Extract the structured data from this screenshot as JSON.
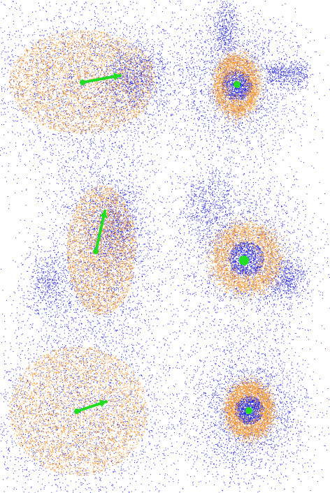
{
  "colors": {
    "background": "#ffffff",
    "outer_particles": "#2a2ad8",
    "inner_particles": "#f5a040",
    "marker": "#22dd22"
  },
  "panels": [
    {
      "id": "top-left",
      "view": "side",
      "marker": "arrow"
    },
    {
      "id": "top-right",
      "view": "face-on",
      "marker": "dot"
    },
    {
      "id": "middle-left",
      "view": "side",
      "marker": "arrow"
    },
    {
      "id": "middle-right",
      "view": "face-on",
      "marker": "dot"
    },
    {
      "id": "bottom-left",
      "view": "side",
      "marker": "arrow"
    },
    {
      "id": "bottom-right",
      "view": "face-on",
      "marker": "dot"
    }
  ]
}
